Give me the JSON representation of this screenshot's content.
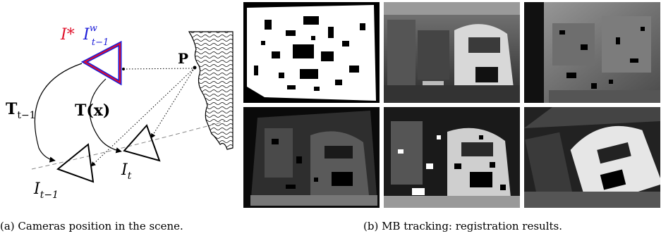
{
  "figure_a": {
    "labels": {
      "ref_camera": "I*",
      "warped_camera_base": "I",
      "warped_camera_sup": "w",
      "warped_camera_sub": "t−1",
      "point": "P",
      "transform_prev_base": "T",
      "transform_prev_sub": "t−1",
      "transform_x": "T(x)",
      "cam_prev_base": "I",
      "cam_prev_sub": "t−1",
      "cam_curr_base": "I",
      "cam_curr_sub": "t"
    },
    "colors": {
      "ref_camera": "#e0102a",
      "warped_camera": "#1c1cd8"
    }
  },
  "figure_b": {
    "panels": [
      {
        "row": 1,
        "col": 1,
        "kind": "binary-mask"
      },
      {
        "row": 1,
        "col": 2,
        "kind": "grayscale-photo"
      },
      {
        "row": 1,
        "col": 3,
        "kind": "depth-map"
      },
      {
        "row": 2,
        "col": 1,
        "kind": "warped-dark"
      },
      {
        "row": 2,
        "col": 2,
        "kind": "warped-holes"
      },
      {
        "row": 2,
        "col": 3,
        "kind": "warped-rotated"
      }
    ]
  },
  "captions": {
    "a": "(a)  Cameras position in the scene.",
    "b": "(b)  MB tracking: registration results."
  }
}
